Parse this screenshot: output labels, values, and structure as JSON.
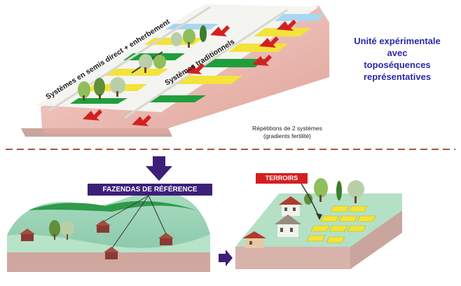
{
  "top_panel": {
    "system_labels": {
      "direct_seeding": "Systèmes en semis direct + enherbement",
      "traditional": "Systèmes traditionnels"
    },
    "caption": {
      "line1": "Répétitions de 2 systèmes",
      "line2": "(gradients fertilité)"
    }
  },
  "title": {
    "line1": "Unité expérimentale",
    "line2": "avec",
    "line3": "toposéquences",
    "line4": "représentatives"
  },
  "bottom_panel": {
    "fazendas_label": "FAZENDAS DE RÉFÉRENCE",
    "terroirs_label": "TERROIRS"
  },
  "colors": {
    "accent_blue": "#2a2aa8",
    "arrow_red": "#d41f1f",
    "purple": "#3d1f7a",
    "field_green": "#1f9e3c",
    "field_yellow": "#f3e33a",
    "water_blue": "#a9d6f2",
    "soil_pink": "#f2c6c0"
  }
}
